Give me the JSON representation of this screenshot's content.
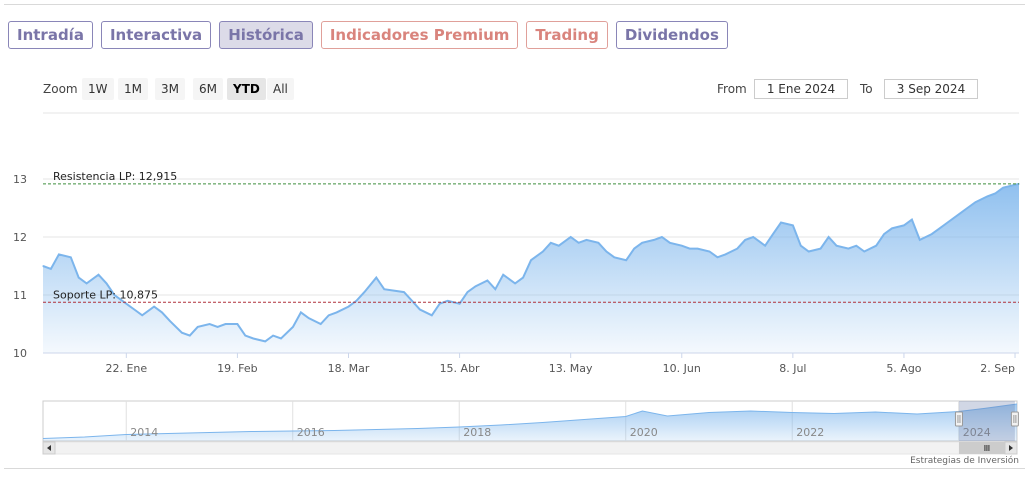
{
  "tabs": [
    {
      "label": "Intradía",
      "active": false,
      "style": "normal"
    },
    {
      "label": "Interactiva",
      "active": false,
      "style": "normal"
    },
    {
      "label": "Histórica",
      "active": true,
      "style": "normal"
    },
    {
      "label": "Indicadores Premium",
      "active": false,
      "style": "premium"
    },
    {
      "label": "Trading",
      "active": false,
      "style": "premium"
    },
    {
      "label": "Dividendos",
      "active": false,
      "style": "normal"
    }
  ],
  "zoom": {
    "label": "Zoom",
    "buttons": [
      "1W",
      "1M",
      "3M",
      "6M",
      "YTD",
      "All"
    ],
    "selected": "YTD"
  },
  "range": {
    "from_label": "From",
    "from_value": "1 Ene 2024",
    "to_label": "To",
    "to_value": "3 Sep 2024"
  },
  "credits": "Estrategias de Inversión",
  "colors": {
    "line": "#7cb5ec",
    "resistance": "#3f8f3f",
    "support": "#b0303a",
    "tab_text": "#7a75a8",
    "premium_text": "#d9847d"
  },
  "chart_data": {
    "type": "area",
    "title": "",
    "xlabel": "",
    "ylabel": "",
    "ylim": [
      10,
      13
    ],
    "yticks": [
      10,
      11,
      12,
      13
    ],
    "grid": true,
    "x_tick_labels": [
      "22. Ene",
      "19. Feb",
      "18. Mar",
      "15. Abr",
      "13. May",
      "10. Jun",
      "8. Jul",
      "5. Ago",
      "2. Sep"
    ],
    "x_tick_dates": [
      "2024-01-22",
      "2024-02-19",
      "2024-03-18",
      "2024-04-15",
      "2024-05-13",
      "2024-06-10",
      "2024-07-08",
      "2024-08-05",
      "2024-09-02"
    ],
    "x_range": [
      "2024-01-01",
      "2024-09-03"
    ],
    "annotations": [
      {
        "label": "Resistencia LP: 12,915",
        "value": 12.915,
        "style": "dashed",
        "color": "#3f8f3f"
      },
      {
        "label": "Soporte LP: 10,875",
        "value": 10.875,
        "style": "dashed",
        "color": "#b0303a"
      }
    ],
    "series": [
      {
        "x": [
          "2024-01-01",
          "2024-01-03",
          "2024-01-05",
          "2024-01-08",
          "2024-01-10",
          "2024-01-12",
          "2024-01-15",
          "2024-01-17",
          "2024-01-19",
          "2024-01-22",
          "2024-01-24",
          "2024-01-26",
          "2024-01-29",
          "2024-01-31",
          "2024-02-02",
          "2024-02-05",
          "2024-02-07",
          "2024-02-09",
          "2024-02-12",
          "2024-02-14",
          "2024-02-16",
          "2024-02-19",
          "2024-02-21",
          "2024-02-23",
          "2024-02-26",
          "2024-02-28",
          "2024-03-01",
          "2024-03-04",
          "2024-03-06",
          "2024-03-08",
          "2024-03-11",
          "2024-03-13",
          "2024-03-15",
          "2024-03-18",
          "2024-03-20",
          "2024-03-22",
          "2024-03-25",
          "2024-03-27",
          "2024-04-01",
          "2024-04-03",
          "2024-04-05",
          "2024-04-08",
          "2024-04-10",
          "2024-04-12",
          "2024-04-15",
          "2024-04-17",
          "2024-04-19",
          "2024-04-22",
          "2024-04-24",
          "2024-04-26",
          "2024-04-29",
          "2024-05-01",
          "2024-05-03",
          "2024-05-06",
          "2024-05-08",
          "2024-05-10",
          "2024-05-13",
          "2024-05-15",
          "2024-05-17",
          "2024-05-20",
          "2024-05-22",
          "2024-05-24",
          "2024-05-27",
          "2024-05-29",
          "2024-05-31",
          "2024-06-03",
          "2024-06-05",
          "2024-06-07",
          "2024-06-10",
          "2024-06-12",
          "2024-06-14",
          "2024-06-17",
          "2024-06-19",
          "2024-06-21",
          "2024-06-24",
          "2024-06-26",
          "2024-06-28",
          "2024-07-01",
          "2024-07-03",
          "2024-07-05",
          "2024-07-08",
          "2024-07-10",
          "2024-07-12",
          "2024-07-15",
          "2024-07-17",
          "2024-07-19",
          "2024-07-22",
          "2024-07-24",
          "2024-07-26",
          "2024-07-29",
          "2024-07-31",
          "2024-08-02",
          "2024-08-05",
          "2024-08-07",
          "2024-08-09",
          "2024-08-12",
          "2024-08-14",
          "2024-08-16",
          "2024-08-19",
          "2024-08-21",
          "2024-08-23",
          "2024-08-26",
          "2024-08-28",
          "2024-08-30",
          "2024-09-03"
        ],
        "y": [
          11.5,
          11.45,
          11.7,
          11.65,
          11.3,
          11.2,
          11.35,
          11.2,
          11.0,
          10.85,
          10.75,
          10.65,
          10.8,
          10.7,
          10.55,
          10.35,
          10.3,
          10.45,
          10.5,
          10.45,
          10.5,
          10.5,
          10.3,
          10.25,
          10.2,
          10.3,
          10.25,
          10.45,
          10.7,
          10.6,
          10.5,
          10.65,
          10.7,
          10.8,
          10.9,
          11.05,
          11.3,
          11.1,
          11.05,
          10.9,
          10.75,
          10.65,
          10.85,
          10.9,
          10.85,
          11.05,
          11.15,
          11.25,
          11.1,
          11.35,
          11.2,
          11.3,
          11.6,
          11.75,
          11.9,
          11.85,
          12.0,
          11.9,
          11.95,
          11.9,
          11.75,
          11.65,
          11.6,
          11.8,
          11.9,
          11.95,
          12.0,
          11.9,
          11.85,
          11.8,
          11.8,
          11.75,
          11.65,
          11.7,
          11.8,
          11.95,
          12.0,
          11.85,
          12.05,
          12.25,
          12.2,
          11.85,
          11.75,
          11.8,
          12.0,
          11.85,
          11.8,
          11.85,
          11.75,
          11.85,
          12.05,
          12.15,
          12.2,
          12.3,
          11.95,
          12.05,
          12.15,
          12.25,
          12.4,
          12.5,
          12.6,
          12.7,
          12.75,
          12.85,
          12.915
        ]
      }
    ],
    "navigator": {
      "x_labels": [
        "2014",
        "2016",
        "2018",
        "2020",
        "2022",
        "2024"
      ],
      "x_range": [
        2013,
        2024.7
      ],
      "selected_range": [
        "2024-01-01",
        "2024-09-03"
      ],
      "series": {
        "x": [
          2013.0,
          2013.5,
          2014.0,
          2014.5,
          2015.0,
          2015.5,
          2016.0,
          2016.5,
          2017.0,
          2017.5,
          2018.0,
          2018.5,
          2019.0,
          2019.5,
          2020.0,
          2020.2,
          2020.5,
          2021.0,
          2021.5,
          2022.0,
          2022.5,
          2023.0,
          2023.5,
          2024.0,
          2024.3,
          2024.7
        ],
        "y": [
          6.0,
          6.3,
          6.8,
          7.0,
          7.2,
          7.4,
          7.5,
          7.6,
          7.8,
          8.0,
          8.3,
          8.7,
          9.2,
          9.8,
          10.4,
          11.5,
          10.5,
          11.2,
          11.5,
          11.2,
          11.0,
          11.3,
          10.9,
          11.4,
          12.0,
          12.9
        ]
      }
    }
  }
}
